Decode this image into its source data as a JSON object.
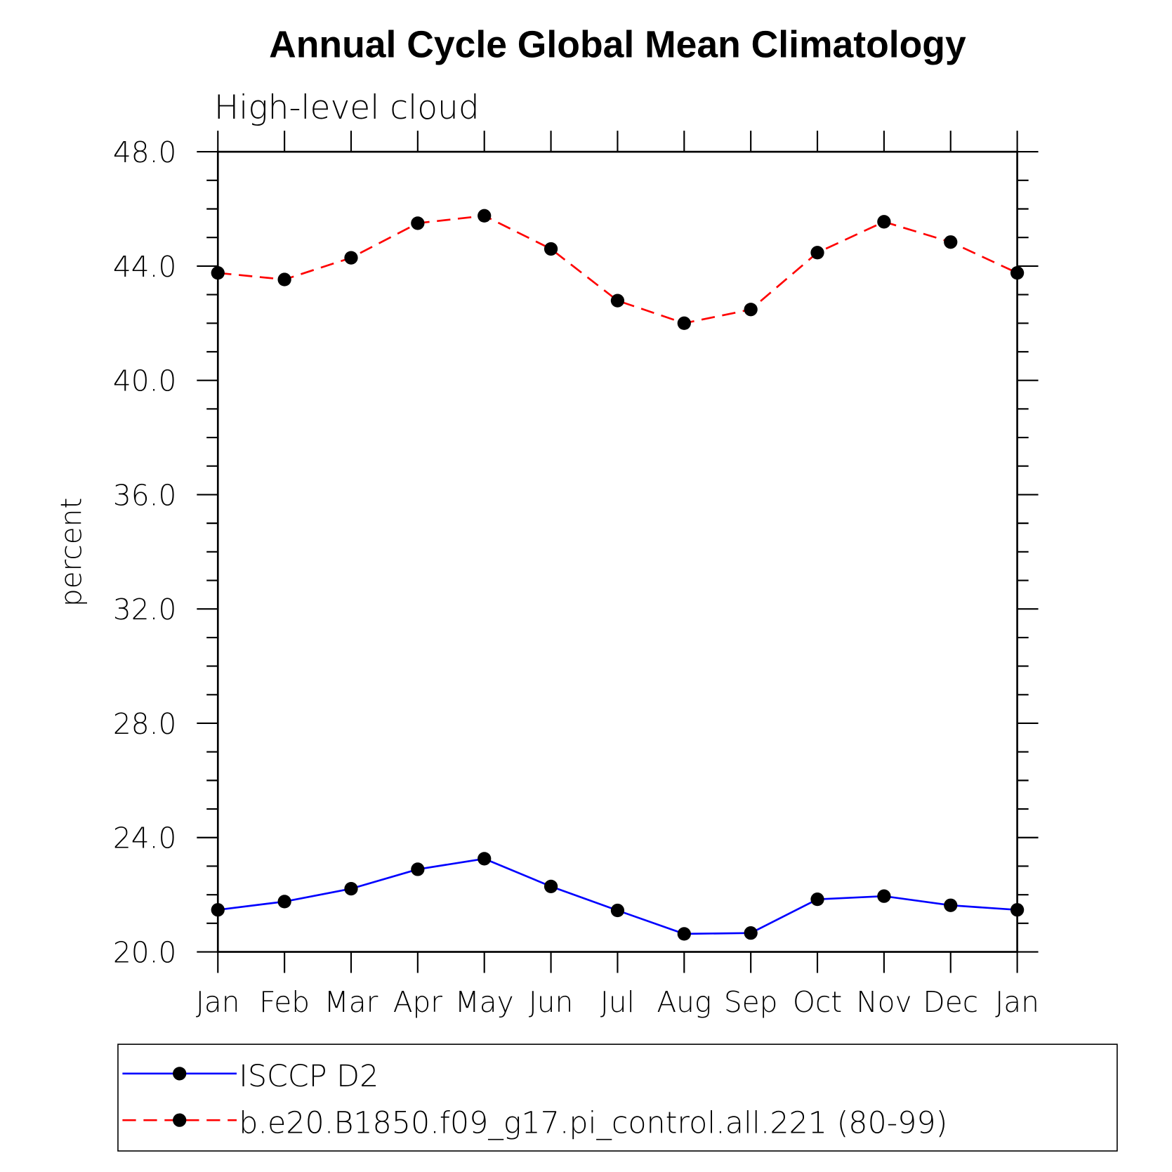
{
  "chart_data": {
    "type": "line",
    "title": "Annual Cycle Global Mean Climatology",
    "subtitle": "High-level cloud",
    "xlabel": "",
    "ylabel": "percent",
    "ylim": [
      20,
      48
    ],
    "yticks": [
      "20.0",
      "24.0",
      "28.0",
      "32.0",
      "36.0",
      "40.0",
      "44.0",
      "48.0"
    ],
    "ytick_values": [
      20,
      24,
      28,
      32,
      36,
      40,
      44,
      48
    ],
    "categories": [
      "Jan",
      "Feb",
      "Mar",
      "Apr",
      "May",
      "Jun",
      "Jul",
      "Aug",
      "Sep",
      "Oct",
      "Nov",
      "Dec",
      "Jan"
    ],
    "grid": false,
    "legend_placement": "bottom",
    "series": [
      {
        "name": "ISCCP D2",
        "color": "#0000ff",
        "dash": "solid",
        "marker": "filled-circle",
        "values": [
          21.47,
          21.76,
          22.21,
          22.89,
          23.26,
          22.29,
          21.45,
          20.63,
          20.66,
          21.84,
          21.95,
          21.63,
          21.47
        ]
      },
      {
        "name": "b.e20.B1850.f09_g17.pi_control.all.221 (80-99)",
        "color": "#ff0000",
        "dash": "dashed",
        "marker": "filled-circle",
        "values": [
          43.76,
          43.53,
          44.29,
          45.5,
          45.76,
          44.6,
          42.79,
          42.0,
          42.48,
          44.47,
          45.55,
          44.84,
          43.76
        ]
      }
    ]
  }
}
